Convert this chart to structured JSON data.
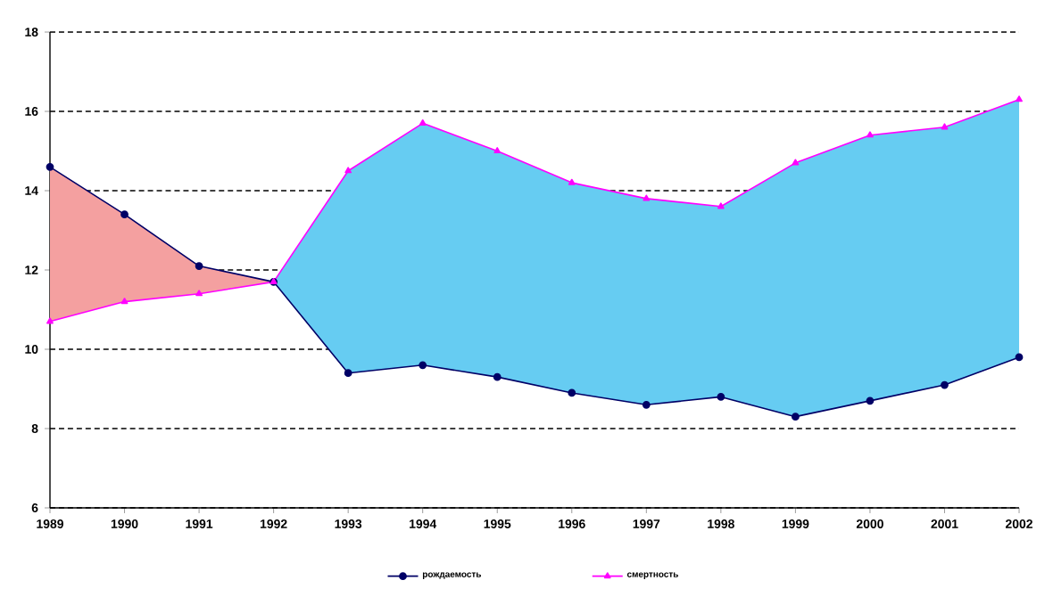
{
  "chart_data": {
    "type": "line",
    "categories": [
      "1989",
      "1990",
      "1991",
      "1992",
      "1993",
      "1994",
      "1995",
      "1996",
      "1997",
      "1998",
      "1999",
      "2000",
      "2001",
      "2002"
    ],
    "series": [
      {
        "type": "area",
        "color": "#f4a0a0",
        "values": [
          14.6,
          13.4,
          12.1,
          11.7,
          null,
          null,
          null,
          null,
          null,
          null,
          null,
          null,
          null,
          null
        ]
      },
      {
        "type": "area",
        "color": "#66ccf2",
        "values": [
          null,
          null,
          null,
          11.7,
          14.5,
          15.7,
          15.0,
          14.2,
          13.8,
          13.6,
          14.7,
          15.4,
          15.6,
          16.3
        ]
      },
      {
        "name": "рождаемость",
        "color": "#000066",
        "marker": "circle",
        "values": [
          14.6,
          13.4,
          12.1,
          11.7,
          9.4,
          9.6,
          9.3,
          8.9,
          8.6,
          8.8,
          8.3,
          8.7,
          9.1,
          9.8
        ]
      },
      {
        "name": "смертность",
        "color": "#ff00ff",
        "marker": "triangle",
        "values": [
          10.7,
          11.2,
          11.4,
          11.7,
          14.5,
          15.7,
          15.0,
          14.2,
          13.8,
          13.6,
          14.7,
          15.4,
          15.6,
          16.3
        ]
      }
    ],
    "ylim": [
      6,
      18
    ],
    "yticks": [
      6,
      8,
      10,
      12,
      14,
      16,
      18
    ],
    "grid": "y",
    "legend": "bottom"
  }
}
